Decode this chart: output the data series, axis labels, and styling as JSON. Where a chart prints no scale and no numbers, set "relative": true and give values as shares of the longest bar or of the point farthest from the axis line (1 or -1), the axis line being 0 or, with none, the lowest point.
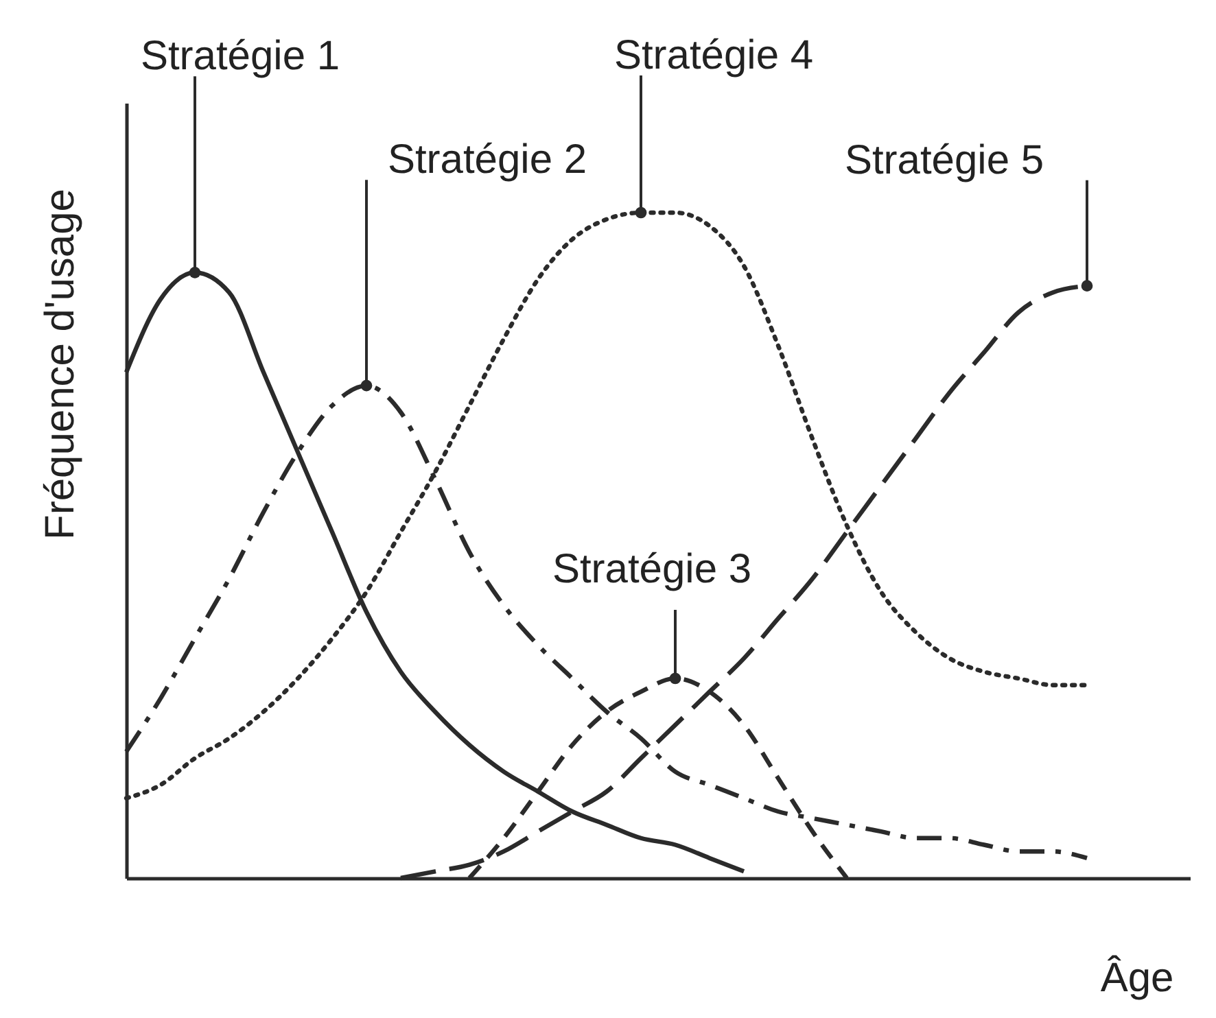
{
  "chart_data": {
    "type": "line",
    "relative": true,
    "xlabel": "Âge",
    "ylabel": "Fréquence d'usage",
    "tick_labels": false,
    "categories": [
      null,
      null,
      null,
      null,
      null,
      null,
      null,
      null,
      null,
      null,
      null,
      null,
      null,
      null,
      null,
      null,
      null,
      null,
      null,
      null,
      null,
      null,
      null,
      null,
      null,
      null,
      null,
      null,
      null
    ],
    "series": [
      {
        "name": "Stratégie 1",
        "color": "#2b2b2b",
        "line_style": "solid",
        "values": [
          0.76,
          0.87,
          0.91,
          0.88,
          0.76,
          0.64,
          0.52,
          0.4,
          0.31,
          0.25,
          0.2,
          0.16,
          0.13,
          0.1,
          0.08,
          0.06,
          0.05,
          0.03,
          0.01,
          null,
          null,
          null,
          null,
          null,
          null,
          null,
          null,
          null,
          null
        ]
      },
      {
        "name": "Stratégie 2",
        "color": "#2b2b2b",
        "line_style": "dashed",
        "values": [
          0.19,
          0.27,
          0.36,
          0.45,
          0.55,
          0.64,
          0.71,
          0.74,
          0.7,
          0.6,
          0.49,
          0.41,
          0.35,
          0.3,
          0.25,
          0.21,
          0.16,
          0.14,
          0.12,
          0.1,
          0.09,
          0.08,
          0.07,
          0.06,
          0.06,
          0.05,
          0.04,
          0.04,
          0.03
        ]
      },
      {
        "name": "Stratégie 3",
        "color": "#2b2b2b",
        "line_style": "dashed",
        "values": [
          null,
          null,
          null,
          null,
          null,
          null,
          null,
          null,
          null,
          null,
          0,
          0.06,
          0.13,
          0.2,
          0.25,
          0.28,
          0.3,
          0.28,
          0.23,
          0.15,
          0.07,
          0,
          null,
          null,
          null,
          null,
          null,
          null,
          null
        ]
      },
      {
        "name": "Stratégie 4",
        "color": "#2b2b2b",
        "line_style": "dotted",
        "values": [
          0.12,
          0.14,
          0.18,
          0.21,
          0.25,
          0.3,
          0.36,
          0.43,
          0.52,
          0.61,
          0.71,
          0.81,
          0.9,
          0.96,
          0.99,
          1,
          1,
          0.98,
          0.92,
          0.8,
          0.66,
          0.53,
          0.43,
          0.37,
          0.33,
          0.31,
          0.3,
          0.29,
          0.29
        ]
      },
      {
        "name": "Stratégie 5",
        "color": "#2b2b2b",
        "line_style": "dashed",
        "values": [
          null,
          null,
          null,
          null,
          null,
          null,
          null,
          null,
          0,
          0.01,
          0.02,
          0.04,
          0.07,
          0.1,
          0.13,
          0.18,
          0.23,
          0.28,
          0.33,
          0.39,
          0.45,
          0.52,
          0.59,
          0.66,
          0.73,
          0.79,
          0.85,
          0.88,
          0.89
        ]
      }
    ]
  }
}
